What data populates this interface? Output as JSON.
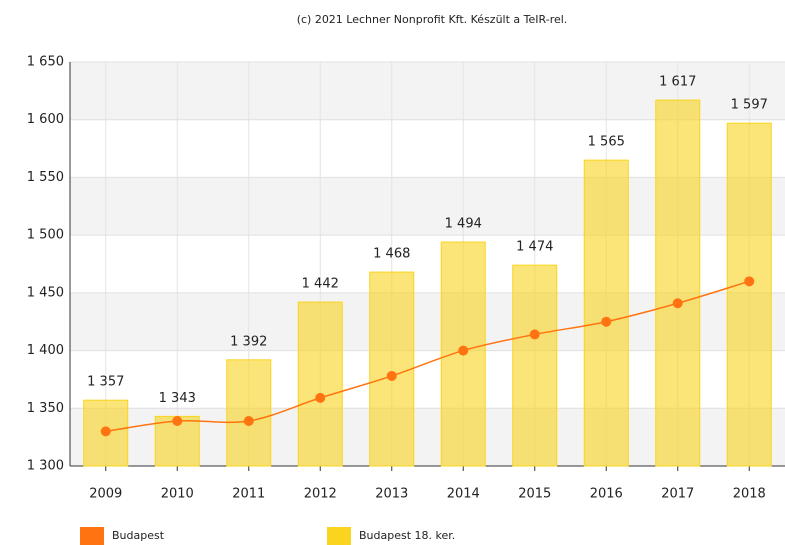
{
  "chart_data": {
    "type": "combo",
    "title": "(c) 2021 Lechner Nonprofit Kft. Készült a TeIR-rel.",
    "categories": [
      "2009",
      "2010",
      "2011",
      "2012",
      "2013",
      "2014",
      "2015",
      "2016",
      "2017",
      "2018"
    ],
    "series": [
      {
        "name": "Budapest",
        "type": "line",
        "color": "#ff7410",
        "values": [
          1330,
          1339,
          1339,
          1359,
          1378,
          1400,
          1414,
          1425,
          1441,
          1460
        ]
      },
      {
        "name": "Budapest 18. ker.",
        "type": "bar",
        "color": "#fad41e",
        "values": [
          1357,
          1343,
          1392,
          1442,
          1468,
          1494,
          1474,
          1565,
          1617,
          1597
        ],
        "value_labels": [
          "1 357",
          "1 343",
          "1 392",
          "1 442",
          "1 468",
          "1 494",
          "1 474",
          "1 565",
          "1 617",
          "1 597"
        ]
      }
    ],
    "ylim": [
      1300,
      1650
    ],
    "yticks": [
      {
        "value": 1300,
        "label": "1 300"
      },
      {
        "value": 1350,
        "label": "1 350"
      },
      {
        "value": 1400,
        "label": "1 400"
      },
      {
        "value": 1450,
        "label": "1 450"
      },
      {
        "value": 1500,
        "label": "1 500"
      },
      {
        "value": 1550,
        "label": "1 550"
      },
      {
        "value": 1600,
        "label": "1 600"
      },
      {
        "value": 1650,
        "label": "1 650"
      }
    ],
    "grid": true,
    "legend": "bottom"
  }
}
